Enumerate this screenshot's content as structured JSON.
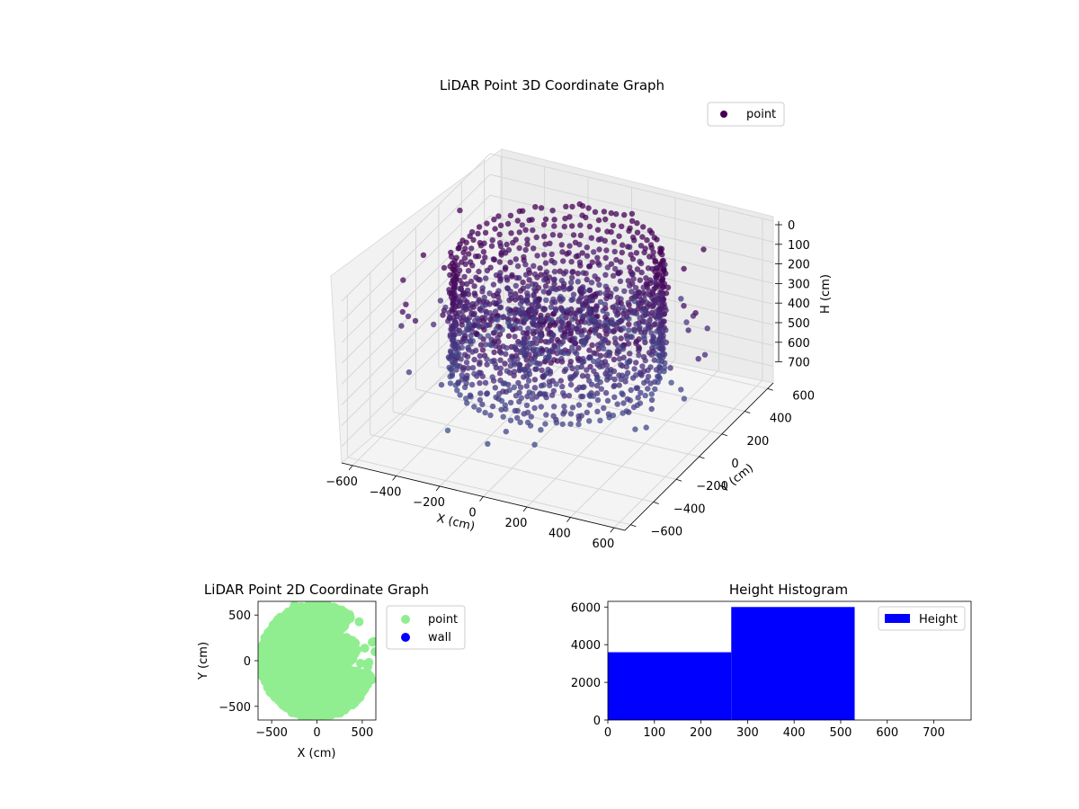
{
  "chart_data": [
    {
      "type": "scatter3d",
      "title": "LiDAR Point 3D Coordinate Graph",
      "xlabel": "X (cm)",
      "ylabel": "Y (cm)",
      "zlabel": "H (cm)",
      "xlim": [
        -650,
        650
      ],
      "ylim": [
        -650,
        650
      ],
      "zlim": [
        0,
        780
      ],
      "z_inverted": true,
      "x_ticks": [
        "−600",
        "−400",
        "−200",
        "0",
        "200",
        "400",
        "600"
      ],
      "y_ticks": [
        "−600",
        "−400",
        "−200",
        "0",
        "200",
        "400",
        "600"
      ],
      "z_ticks": [
        "0",
        "100",
        "200",
        "300",
        "400",
        "500",
        "600",
        "700"
      ],
      "legend": {
        "placement": "top-right",
        "entries": [
          {
            "label": "point",
            "color": "#440154"
          }
        ]
      },
      "grid": true,
      "colormap": "viridis",
      "series": [
        {
          "name": "point",
          "shape": "cylindrical ring of points, radius ~430, heights 0 to 530, plus scattered outliers",
          "ring_radius": 430,
          "height_range": [
            0,
            530
          ]
        }
      ]
    },
    {
      "type": "scatter",
      "title": "LiDAR Point 2D Coordinate Graph",
      "xlabel": "X (cm)",
      "ylabel": "Y (cm)",
      "xlim": [
        -650,
        650
      ],
      "ylim": [
        -650,
        650
      ],
      "x_ticks": [
        "−500",
        "0",
        "500"
      ],
      "y_ticks": [
        "−500",
        "0",
        "500"
      ],
      "legend": {
        "placement": "outside-right",
        "entries": [
          {
            "label": "point",
            "color": "#90ee90"
          },
          {
            "label": "wall",
            "color": "#0000ff"
          }
        ]
      },
      "series": [
        {
          "name": "point",
          "color": "#90ee90"
        },
        {
          "name": "wall",
          "color": "#0000ff",
          "values": []
        }
      ]
    },
    {
      "type": "bar",
      "title": "Height Histogram",
      "xlabel": "",
      "ylabel": "",
      "xlim": [
        0,
        780
      ],
      "ylim": [
        0,
        6300
      ],
      "x_ticks": [
        "0",
        "100",
        "200",
        "300",
        "400",
        "500",
        "600",
        "700"
      ],
      "y_ticks": [
        "0",
        "2000",
        "4000",
        "6000"
      ],
      "legend": {
        "placement": "top-right",
        "entries": [
          {
            "label": "Height",
            "color": "#0000ff"
          }
        ]
      },
      "bins": [
        {
          "x0": 0,
          "x1": 265,
          "count": 3600
        },
        {
          "x0": 265,
          "x1": 530,
          "count": 6000
        },
        {
          "x0": 530,
          "x1": 780,
          "count": 0
        }
      ],
      "color": "#0000ff"
    }
  ]
}
